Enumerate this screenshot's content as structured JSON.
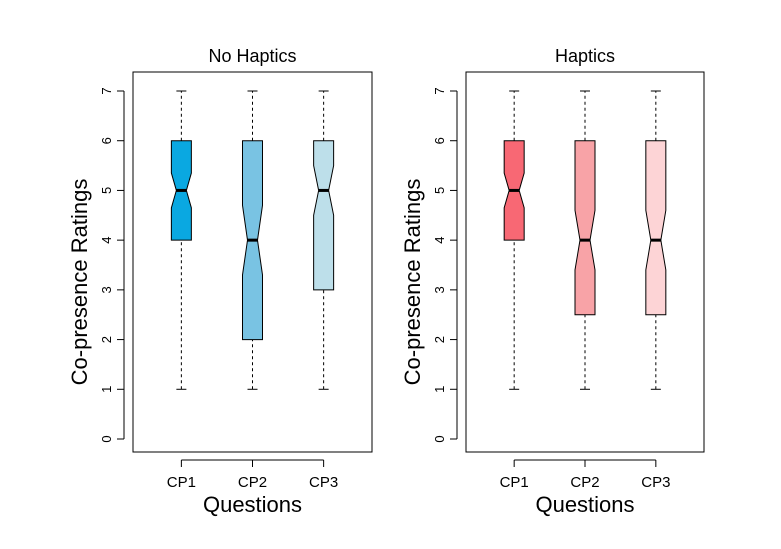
{
  "chart_data": [
    {
      "type": "boxplot",
      "title": "No Haptics",
      "xlabel": "Questions",
      "ylabel": "Co-presence Ratings",
      "ylim": [
        0,
        7
      ],
      "yticks": [
        "0",
        "1",
        "2",
        "3",
        "4",
        "5",
        "6",
        "7"
      ],
      "notched": true,
      "categories": [
        "CP1",
        "CP2",
        "CP3"
      ],
      "boxes": [
        {
          "name": "CP1",
          "min": 1,
          "q1": 4,
          "median": 5,
          "q3": 6,
          "max": 7,
          "notch_low": 4.65,
          "notch_high": 5.35,
          "color": "#0aa8e1"
        },
        {
          "name": "CP2",
          "min": 1,
          "q1": 2,
          "median": 4,
          "q3": 6,
          "max": 7,
          "notch_low": 3.3,
          "notch_high": 4.7,
          "color": "#79c3e3"
        },
        {
          "name": "CP3",
          "min": 1,
          "q1": 3,
          "median": 5,
          "q3": 6,
          "max": 7,
          "notch_low": 4.5,
          "notch_high": 5.5,
          "color": "#bddfea"
        }
      ]
    },
    {
      "type": "boxplot",
      "title": "Haptics",
      "xlabel": "Questions",
      "ylabel": "Co-presence Ratings",
      "ylim": [
        0,
        7
      ],
      "yticks": [
        "0",
        "1",
        "2",
        "3",
        "4",
        "5",
        "6",
        "7"
      ],
      "notched": true,
      "categories": [
        "CP1",
        "CP2",
        "CP3"
      ],
      "boxes": [
        {
          "name": "CP1",
          "min": 1,
          "q1": 4,
          "median": 5,
          "q3": 6,
          "max": 7,
          "notch_low": 4.65,
          "notch_high": 5.35,
          "color": "#f86874"
        },
        {
          "name": "CP2",
          "min": 1,
          "q1": 2.5,
          "median": 4,
          "q3": 6,
          "max": 7,
          "notch_low": 3.4,
          "notch_high": 4.6,
          "color": "#f8a3a7"
        },
        {
          "name": "CP3",
          "min": 1,
          "q1": 2.5,
          "median": 4,
          "q3": 6,
          "max": 7,
          "notch_low": 3.4,
          "notch_high": 4.6,
          "color": "#fdd4d6"
        }
      ]
    }
  ]
}
